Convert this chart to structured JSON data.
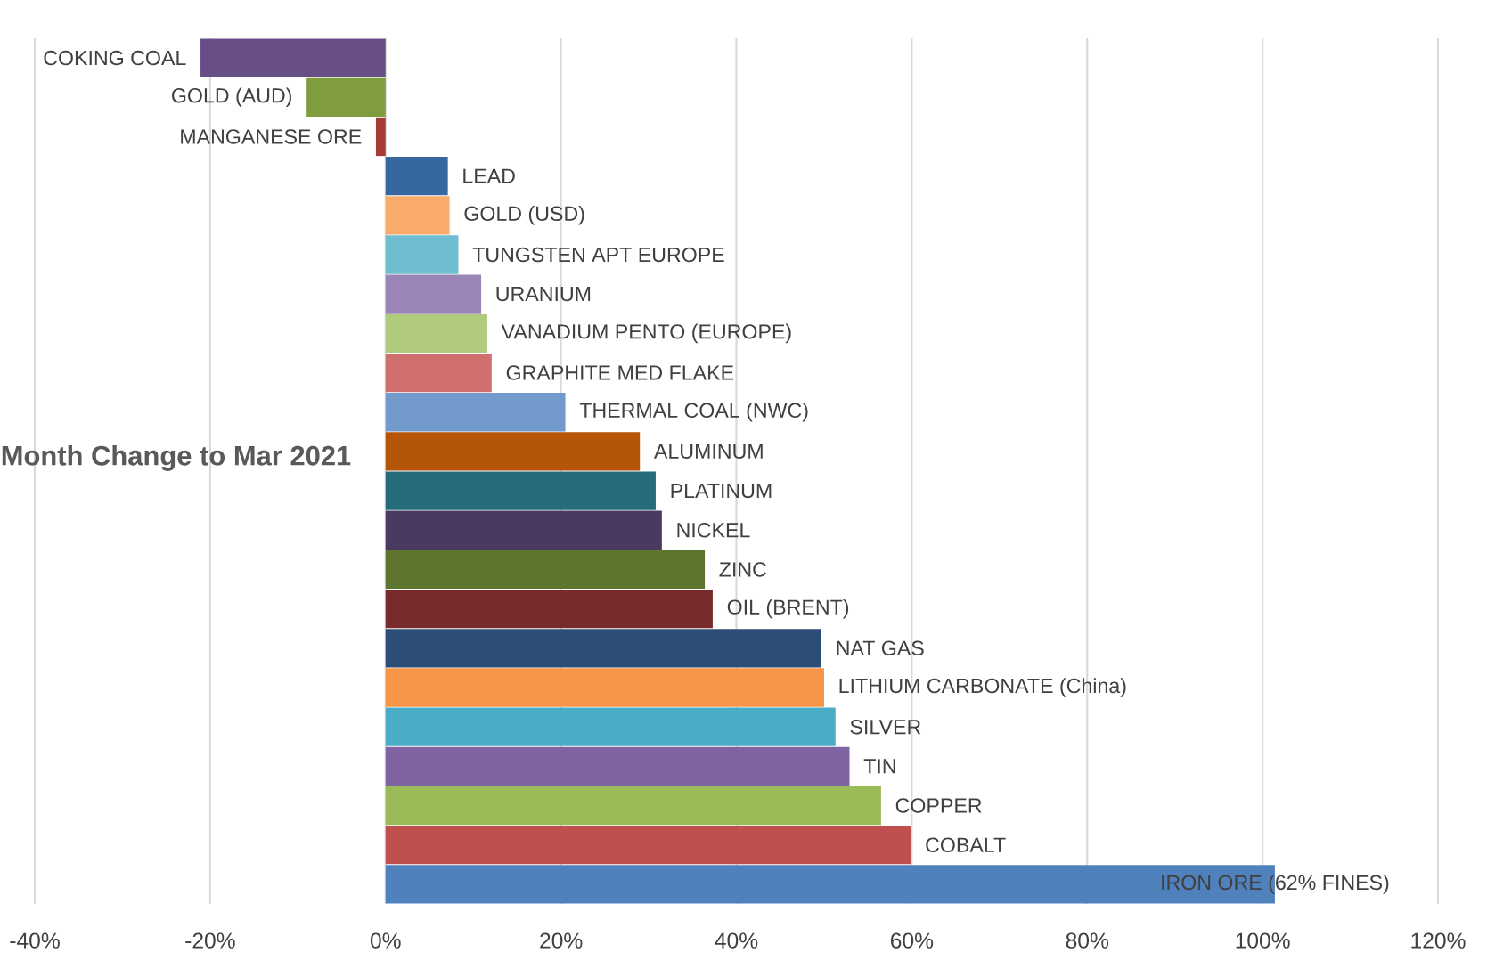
{
  "chart_data": {
    "type": "bar",
    "orientation": "horizontal",
    "title": "Month Change to Mar 2021",
    "categories": [
      "COKING COAL",
      "GOLD (AUD)",
      "MANGANESE ORE",
      "LEAD",
      "GOLD (USD)",
      "TUNGSTEN APT EUROPE",
      "URANIUM",
      "VANADIUM PENTO (EUROPE)",
      "GRAPHITE MED FLAKE",
      "THERMAL COAL (NWC)",
      "ALUMINUM",
      "PLATINUM",
      "NICKEL",
      "ZINC",
      "OIL (BRENT)",
      "NAT GAS",
      "LITHIUM CARBONATE (China)",
      "SILVER",
      "TIN",
      "COPPER",
      "COBALT",
      "IRON ORE (62% FINES)"
    ],
    "values": [
      -21.1,
      -9.0,
      -1.1,
      7.1,
      7.3,
      8.3,
      10.9,
      11.6,
      12.1,
      20.5,
      29.0,
      30.8,
      31.5,
      36.4,
      37.3,
      49.7,
      50.0,
      51.3,
      52.9,
      56.5,
      59.9,
      101.4
    ],
    "colors": [
      "#674e86",
      "#7f9c3f",
      "#a53a37",
      "#36689f",
      "#f9ab6c",
      "#6fbdd1",
      "#9b84b6",
      "#b0cb7e",
      "#cf706e",
      "#729acc",
      "#b55508",
      "#256c7a",
      "#4a3a60",
      "#5e7530",
      "#772b2a",
      "#2c4d75",
      "#f79646",
      "#4bacc6",
      "#8064a2",
      "#9bbb59",
      "#c0504d",
      "#4f81bd"
    ],
    "xlim": [
      -40,
      120
    ],
    "xticks": [
      {
        "value": -40,
        "label": "-40%"
      },
      {
        "value": -20,
        "label": "-20%"
      },
      {
        "value": 0,
        "label": "0%"
      },
      {
        "value": 20,
        "label": "20%"
      },
      {
        "value": 40,
        "label": "40%"
      },
      {
        "value": 60,
        "label": "60%"
      },
      {
        "value": 80,
        "label": "80%"
      },
      {
        "value": 100,
        "label": "100%"
      },
      {
        "value": 120,
        "label": "120%"
      }
    ],
    "grid": "x"
  }
}
